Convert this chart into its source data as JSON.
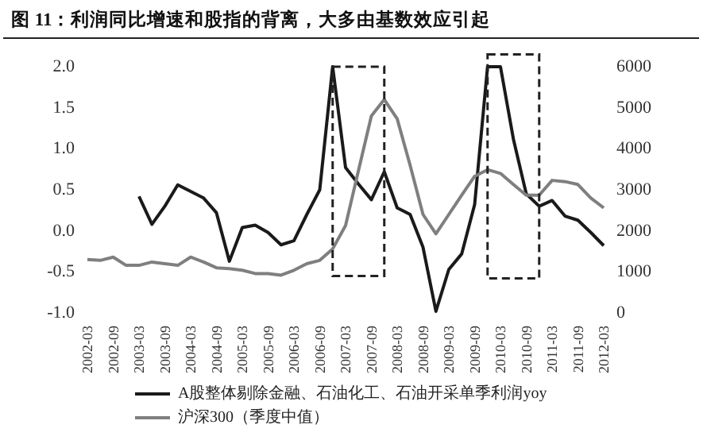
{
  "chart_data": {
    "type": "line",
    "title": "图 11：利润同比增速和股指的背离，大多由基数效应引起",
    "categories": [
      "2002-03",
      null,
      "2002-09",
      null,
      "2003-03",
      null,
      "2003-09",
      null,
      "2004-03",
      null,
      "2004-09",
      null,
      "2005-03",
      null,
      "2005-09",
      null,
      "2006-03",
      null,
      "2006-09",
      null,
      "2007-03",
      null,
      "2007-09",
      null,
      "2008-03",
      null,
      "2008-09",
      null,
      "2009-03",
      null,
      "2009-09",
      null,
      "2010-03",
      null,
      "2010-09",
      null,
      "2011-03",
      null,
      "2011-09",
      null,
      "2012-03"
    ],
    "series": [
      {
        "name": "A股整体剔除金融、石油化工、石油开采单季利润yoy",
        "color": "#1a1a1a",
        "values": [
          null,
          null,
          null,
          null,
          0.42,
          0.08,
          0.3,
          0.56,
          0.48,
          0.4,
          0.22,
          -0.37,
          0.04,
          0.07,
          -0.02,
          -0.17,
          -0.12,
          0.2,
          0.5,
          2.0,
          0.77,
          0.57,
          0.38,
          0.72,
          0.28,
          0.2,
          -0.2,
          -0.98,
          -0.47,
          -0.28,
          0.32,
          2.0,
          2.0,
          1.12,
          0.45,
          0.3,
          0.37,
          0.18,
          0.13,
          -0.02,
          -0.18
        ]
      },
      {
        "name": "沪深300（季度中值）",
        "color": "#7f7f7f",
        "axis": "y2",
        "values": [
          1300,
          1280,
          1360,
          1160,
          1160,
          1240,
          1200,
          1160,
          1360,
          1240,
          1100,
          1080,
          1040,
          960,
          960,
          920,
          1040,
          1200,
          1280,
          1560,
          2130,
          3470,
          4800,
          5200,
          4730,
          3600,
          2400,
          1930,
          2400,
          2870,
          3330,
          3490,
          3400,
          3130,
          2870,
          2870,
          3230,
          3200,
          3130,
          2800,
          2560
        ]
      }
    ],
    "ylim": [
      -1,
      2
    ],
    "yticks": [
      {
        "value": -1,
        "label": "-1.0"
      },
      {
        "value": -0.5,
        "label": "-0.5"
      },
      {
        "value": 0,
        "label": "0.0"
      },
      {
        "value": 0.5,
        "label": "0.5"
      },
      {
        "value": 1,
        "label": "1.0"
      },
      {
        "value": 1.5,
        "label": "1.5"
      },
      {
        "value": 2,
        "label": "2.0"
      }
    ],
    "y2lim": [
      0,
      6000
    ],
    "y2ticks": [
      0,
      1000,
      2000,
      3000,
      4000,
      5000,
      6000
    ],
    "grid": false,
    "legend": "bottom",
    "marker": "none",
    "line_style": "solid"
  }
}
